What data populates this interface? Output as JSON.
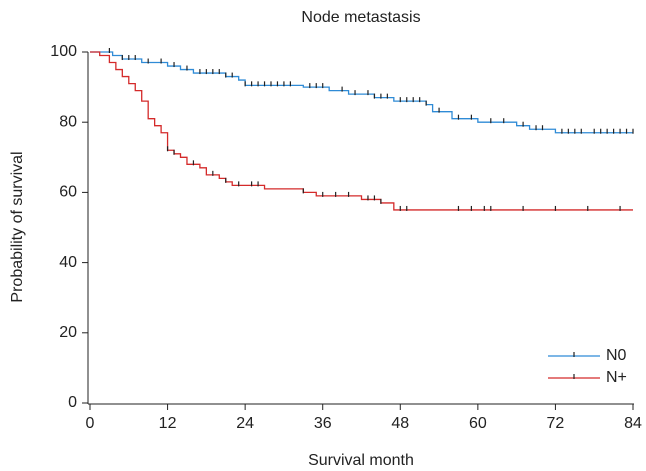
{
  "chart_data": {
    "type": "step",
    "title": "Node metastasis",
    "x_label": "Survival month",
    "y_label": "Probability of survival",
    "xlim": [
      0,
      84
    ],
    "ylim": [
      0,
      100
    ],
    "xticks": [
      0,
      12,
      24,
      36,
      48,
      60,
      72,
      84
    ],
    "yticks": [
      0,
      20,
      40,
      60,
      80,
      100
    ],
    "legend": "lower right",
    "series": [
      {
        "name": "N0",
        "color": "#2f8bd6",
        "x": [
          0,
          3.5,
          5,
          8,
          12,
          14,
          16,
          21,
          23,
          24,
          33,
          37,
          40,
          44,
          47,
          52,
          53,
          56,
          60,
          66,
          68,
          72
        ],
        "values": [
          100,
          99,
          98,
          97,
          96,
          95,
          94,
          93,
          92,
          90.5,
          90,
          89,
          88,
          87,
          86,
          85,
          83,
          81,
          80,
          79,
          78,
          77
        ],
        "censor_x": [
          3,
          5,
          6,
          7,
          9,
          11,
          13,
          15,
          17,
          18,
          19,
          20,
          21,
          22,
          24,
          25,
          26,
          27,
          28,
          29,
          30,
          31,
          34,
          35,
          36,
          39,
          41,
          43,
          44,
          45,
          46,
          48,
          49,
          50,
          51,
          52,
          54,
          57,
          59,
          62,
          64,
          67,
          69,
          70,
          73,
          74,
          75,
          76,
          78,
          79,
          80,
          81,
          82,
          83,
          84
        ]
      },
      {
        "name": "N+",
        "color": "#d42a2a",
        "x": [
          0,
          1.5,
          3,
          4,
          5,
          6,
          7,
          8,
          9,
          10,
          11,
          12,
          13,
          14,
          15,
          17,
          18,
          20,
          21,
          22,
          27,
          33,
          35,
          42,
          45,
          47
        ],
        "values": [
          100,
          99,
          97,
          95,
          93,
          91,
          89,
          86,
          81,
          79,
          77,
          72,
          71,
          70,
          68,
          67,
          65,
          64,
          63,
          62,
          61,
          60,
          59,
          58,
          57,
          55
        ],
        "censor_x": [
          12,
          13,
          16,
          19,
          21,
          23,
          25,
          26,
          33,
          36,
          38,
          40,
          43,
          44,
          45,
          48,
          49,
          57,
          59,
          61,
          62,
          67,
          72,
          77,
          82
        ]
      }
    ]
  }
}
